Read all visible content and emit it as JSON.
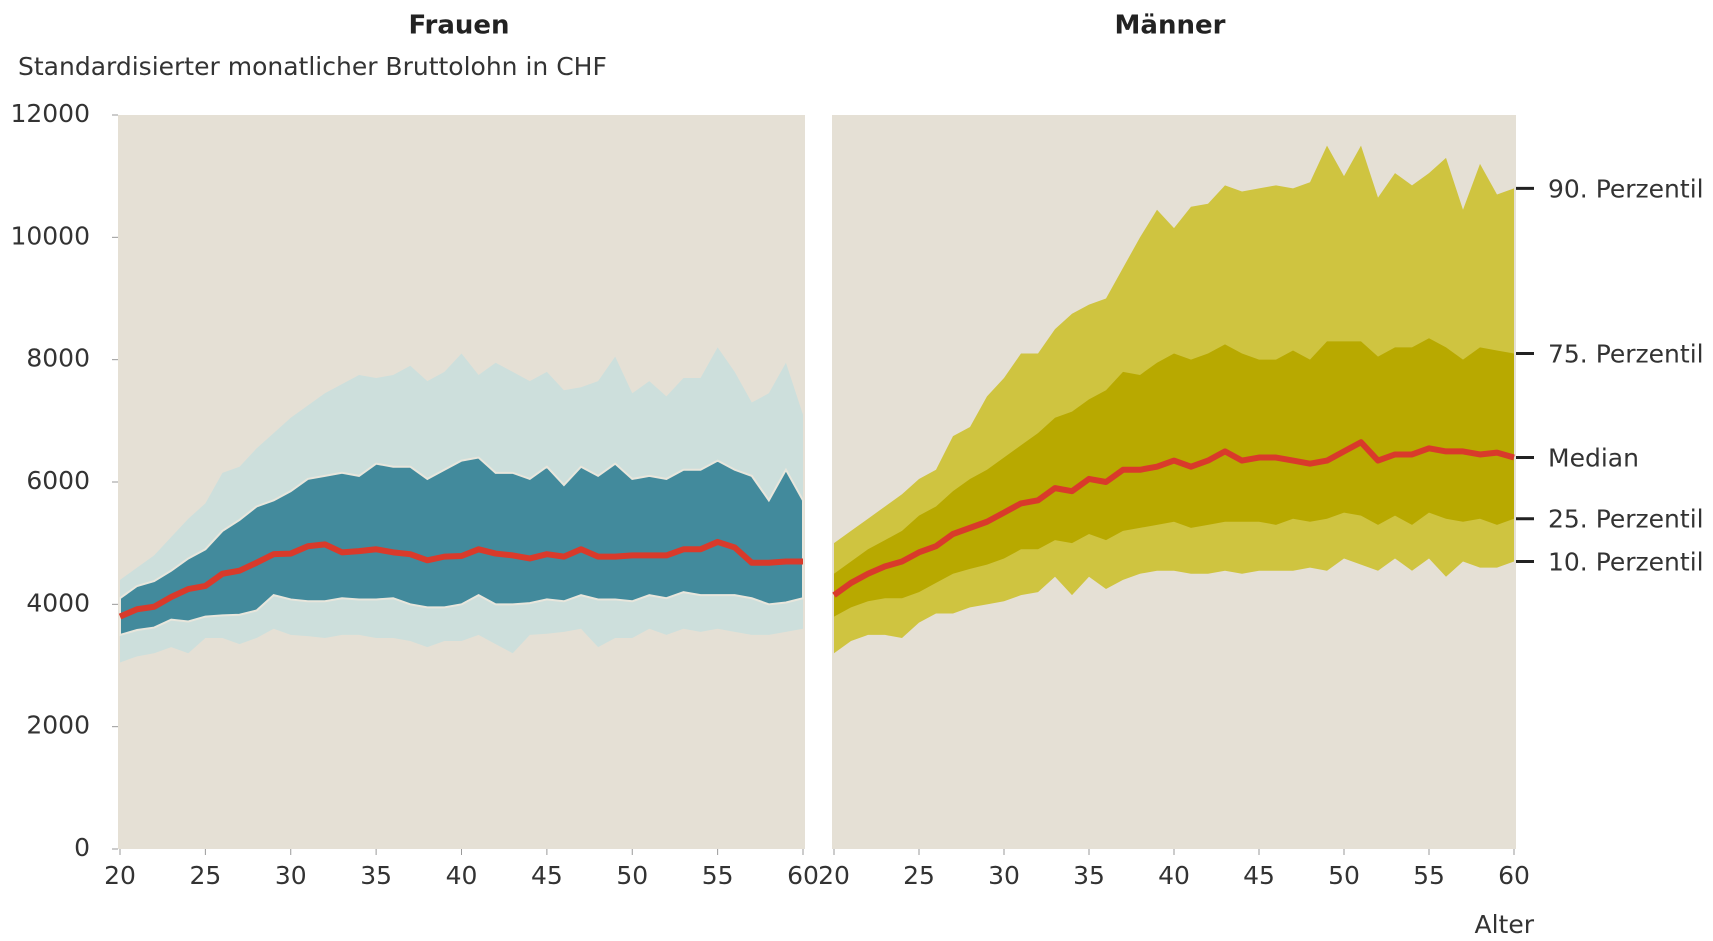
{
  "chart_data": [
    {
      "type": "band",
      "title": "Frauen",
      "ylabel": "Standardisierter monatlicher Bruttolohn in CHF",
      "xlim": [
        20,
        60
      ],
      "xticks": [
        20,
        25,
        30,
        35,
        40,
        45,
        50,
        55,
        60
      ],
      "ylim": [
        0,
        12000
      ],
      "yticks": [
        0,
        2000,
        4000,
        6000,
        8000,
        10000,
        12000
      ],
      "outer_color": "#cddfdc",
      "inner_color": "#428a9c",
      "line_color": "#d93a2b",
      "x": [
        20,
        21,
        22,
        23,
        24,
        25,
        26,
        27,
        28,
        29,
        30,
        31,
        32,
        33,
        34,
        35,
        36,
        37,
        38,
        39,
        40,
        41,
        42,
        43,
        44,
        45,
        46,
        47,
        48,
        49,
        50,
        51,
        52,
        53,
        54,
        55,
        56,
        57,
        58,
        59,
        60
      ],
      "series": [
        {
          "values": [
            3050,
            3150,
            3200,
            3300,
            3200,
            3450,
            3450,
            3350,
            3450,
            3600,
            3500,
            3480,
            3450,
            3500,
            3500,
            3450,
            3450,
            3400,
            3300,
            3400,
            3400,
            3500,
            3350,
            3200,
            3500,
            3520,
            3550,
            3600,
            3300,
            3450,
            3450,
            3600,
            3500,
            3600,
            3550,
            3600,
            3550,
            3500,
            3500,
            3550,
            3600
          ]
        },
        {
          "values": [
            3500,
            3580,
            3620,
            3750,
            3720,
            3800,
            3820,
            3830,
            3900,
            4150,
            4080,
            4050,
            4050,
            4100,
            4080,
            4080,
            4100,
            4000,
            3950,
            3950,
            4000,
            4150,
            4000,
            4000,
            4020,
            4080,
            4050,
            4150,
            4080,
            4080,
            4050,
            4150,
            4100,
            4200,
            4150,
            4150,
            4150,
            4100,
            4000,
            4030,
            4100
          ]
        },
        {
          "values": [
            3800,
            3920,
            3960,
            4120,
            4250,
            4300,
            4500,
            4550,
            4680,
            4820,
            4830,
            4950,
            4980,
            4850,
            4870,
            4900,
            4850,
            4820,
            4720,
            4780,
            4790,
            4900,
            4830,
            4800,
            4750,
            4820,
            4780,
            4900,
            4780,
            4780,
            4800,
            4800,
            4800,
            4900,
            4900,
            5020,
            4930,
            4680,
            4680,
            4700,
            4700
          ]
        },
        {
          "values": [
            4100,
            4300,
            4380,
            4550,
            4750,
            4900,
            5200,
            5380,
            5600,
            5700,
            5850,
            6050,
            6100,
            6150,
            6100,
            6300,
            6250,
            6250,
            6050,
            6200,
            6350,
            6400,
            6150,
            6150,
            6050,
            6250,
            5950,
            6250,
            6100,
            6300,
            6050,
            6100,
            6050,
            6200,
            6200,
            6350,
            6200,
            6100,
            5700,
            6200,
            5700
          ]
        },
        {
          "values": [
            4400,
            4600,
            4800,
            5100,
            5400,
            5650,
            6150,
            6250,
            6550,
            6800,
            7050,
            7250,
            7450,
            7600,
            7750,
            7700,
            7750,
            7900,
            7650,
            7800,
            8100,
            7750,
            7950,
            7800,
            7650,
            7800,
            7500,
            7550,
            7650,
            8050,
            7450,
            7650,
            7400,
            7700,
            7700,
            8200,
            7800,
            7300,
            7450,
            7950,
            7100
          ]
        }
      ]
    },
    {
      "type": "band",
      "title": "Männer",
      "xlabel": "Alter",
      "xlim": [
        20,
        60
      ],
      "xticks": [
        20,
        25,
        30,
        35,
        40,
        45,
        50,
        55,
        60
      ],
      "ylim": [
        0,
        12000
      ],
      "outer_color": "#cfc440",
      "inner_color": "#b8a900",
      "line_color": "#d93a2b",
      "x": [
        20,
        21,
        22,
        23,
        24,
        25,
        26,
        27,
        28,
        29,
        30,
        31,
        32,
        33,
        34,
        35,
        36,
        37,
        38,
        39,
        40,
        41,
        42,
        43,
        44,
        45,
        46,
        47,
        48,
        49,
        50,
        51,
        52,
        53,
        54,
        55,
        56,
        57,
        58,
        59,
        60
      ],
      "series": [
        {
          "name": "10. Perzentil",
          "values": [
            3200,
            3400,
            3500,
            3500,
            3450,
            3700,
            3850,
            3850,
            3950,
            4000,
            4050,
            4150,
            4200,
            4450,
            4150,
            4450,
            4250,
            4400,
            4500,
            4550,
            4550,
            4500,
            4500,
            4550,
            4500,
            4550,
            4550,
            4550,
            4600,
            4550,
            4750,
            4650,
            4550,
            4750,
            4550,
            4750,
            4450,
            4700,
            4600,
            4600,
            4700
          ]
        },
        {
          "name": "25. Perzentil",
          "values": [
            3800,
            3950,
            4050,
            4100,
            4100,
            4200,
            4350,
            4500,
            4580,
            4650,
            4750,
            4900,
            4900,
            5050,
            5000,
            5150,
            5050,
            5200,
            5250,
            5300,
            5350,
            5250,
            5300,
            5350,
            5350,
            5350,
            5300,
            5400,
            5350,
            5400,
            5500,
            5450,
            5300,
            5450,
            5300,
            5500,
            5400,
            5350,
            5400,
            5300,
            5400
          ]
        },
        {
          "name": "Median",
          "values": [
            4150,
            4350,
            4500,
            4620,
            4700,
            4850,
            4950,
            5150,
            5250,
            5350,
            5500,
            5650,
            5700,
            5900,
            5850,
            6050,
            6000,
            6200,
            6200,
            6250,
            6350,
            6250,
            6350,
            6500,
            6350,
            6400,
            6400,
            6350,
            6300,
            6350,
            6500,
            6650,
            6350,
            6450,
            6450,
            6550,
            6500,
            6500,
            6450,
            6480,
            6400
          ]
        },
        {
          "name": "75. Perzentil",
          "values": [
            4500,
            4700,
            4900,
            5050,
            5200,
            5450,
            5600,
            5850,
            6050,
            6200,
            6400,
            6600,
            6800,
            7050,
            7150,
            7350,
            7500,
            7800,
            7750,
            7950,
            8100,
            8000,
            8100,
            8250,
            8100,
            8000,
            8000,
            8150,
            8000,
            8300,
            8300,
            8300,
            8050,
            8200,
            8200,
            8350,
            8200,
            8000,
            8200,
            8150,
            8100
          ]
        },
        {
          "name": "90. Perzentil",
          "values": [
            5000,
            5200,
            5400,
            5600,
            5800,
            6050,
            6200,
            6750,
            6900,
            7400,
            7700,
            8100,
            8100,
            8500,
            8750,
            8900,
            9000,
            9500,
            10000,
            10450,
            10150,
            10500,
            10550,
            10850,
            10750,
            10800,
            10850,
            10800,
            10900,
            11500,
            11000,
            11500,
            10650,
            11050,
            10850,
            11050,
            11300,
            10450,
            11200,
            10700,
            10800
          ]
        }
      ]
    }
  ]
}
